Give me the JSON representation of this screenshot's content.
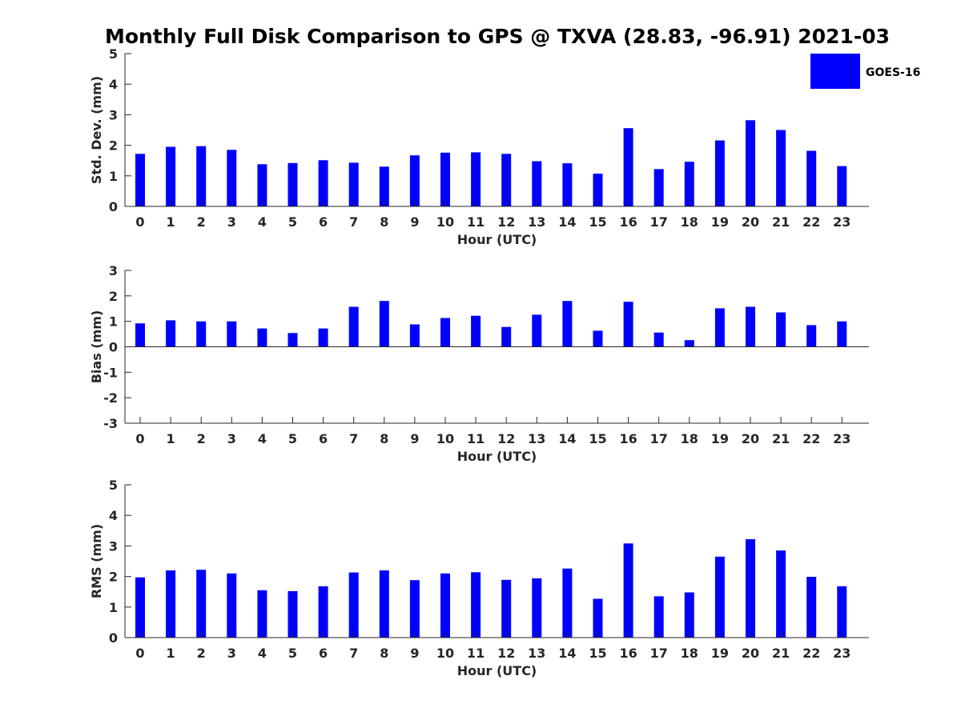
{
  "title": "Monthly Full Disk Comparison to GPS @ TXVA (28.83, -96.91) 2021-03",
  "colors": {
    "bar": "#0000ff",
    "axis": "#262626"
  },
  "legend": {
    "label": "GOES-16",
    "placement": "top-right"
  },
  "chart_data": [
    {
      "type": "bar",
      "xlabel": "Hour (UTC)",
      "ylabel": "Std. Dev. (mm)",
      "ylim": [
        0,
        5
      ],
      "yticks": [
        "0",
        "1",
        "2",
        "3",
        "4",
        "5"
      ],
      "categories": [
        "0",
        "1",
        "2",
        "3",
        "4",
        "5",
        "6",
        "7",
        "8",
        "9",
        "10",
        "11",
        "12",
        "13",
        "14",
        "15",
        "16",
        "17",
        "18",
        "19",
        "20",
        "21",
        "22",
        "23"
      ],
      "series": [
        {
          "name": "GOES-16",
          "values": [
            1.72,
            1.95,
            1.97,
            1.85,
            1.38,
            1.42,
            1.51,
            1.43,
            1.3,
            1.67,
            1.76,
            1.77,
            1.72,
            1.48,
            1.41,
            1.07,
            2.56,
            1.22,
            1.46,
            2.16,
            2.82,
            2.5,
            1.82,
            1.32
          ]
        }
      ],
      "grid": false
    },
    {
      "type": "bar",
      "xlabel": "Hour (UTC)",
      "ylabel": "Bias (mm)",
      "ylim": [
        -3,
        3
      ],
      "yticks": [
        "-3",
        "-2",
        "-1",
        "0",
        "1",
        "2",
        "3"
      ],
      "categories": [
        "0",
        "1",
        "2",
        "3",
        "4",
        "5",
        "6",
        "7",
        "8",
        "9",
        "10",
        "11",
        "12",
        "13",
        "14",
        "15",
        "16",
        "17",
        "18",
        "19",
        "20",
        "21",
        "22",
        "23"
      ],
      "series": [
        {
          "name": "GOES-16",
          "values": [
            0.92,
            1.04,
            1.0,
            1.0,
            0.72,
            0.54,
            0.72,
            1.57,
            1.8,
            0.88,
            1.13,
            1.22,
            0.78,
            1.26,
            1.8,
            0.63,
            1.77,
            0.56,
            0.26,
            1.51,
            1.57,
            1.35,
            0.85,
            1.0
          ]
        }
      ],
      "grid": false
    },
    {
      "type": "bar",
      "xlabel": "Hour (UTC)",
      "ylabel": "RMS (mm)",
      "ylim": [
        0,
        5
      ],
      "yticks": [
        "0",
        "1",
        "2",
        "3",
        "4",
        "5"
      ],
      "categories": [
        "0",
        "1",
        "2",
        "3",
        "4",
        "5",
        "6",
        "7",
        "8",
        "9",
        "10",
        "11",
        "12",
        "13",
        "14",
        "15",
        "16",
        "17",
        "18",
        "19",
        "20",
        "21",
        "22",
        "23"
      ],
      "series": [
        {
          "name": "GOES-16",
          "values": [
            1.97,
            2.2,
            2.22,
            2.1,
            1.55,
            1.52,
            1.68,
            2.13,
            2.2,
            1.88,
            2.1,
            2.14,
            1.89,
            1.94,
            2.26,
            1.27,
            3.08,
            1.35,
            1.48,
            2.65,
            3.22,
            2.85,
            1.99,
            1.68
          ]
        }
      ],
      "grid": false
    }
  ]
}
